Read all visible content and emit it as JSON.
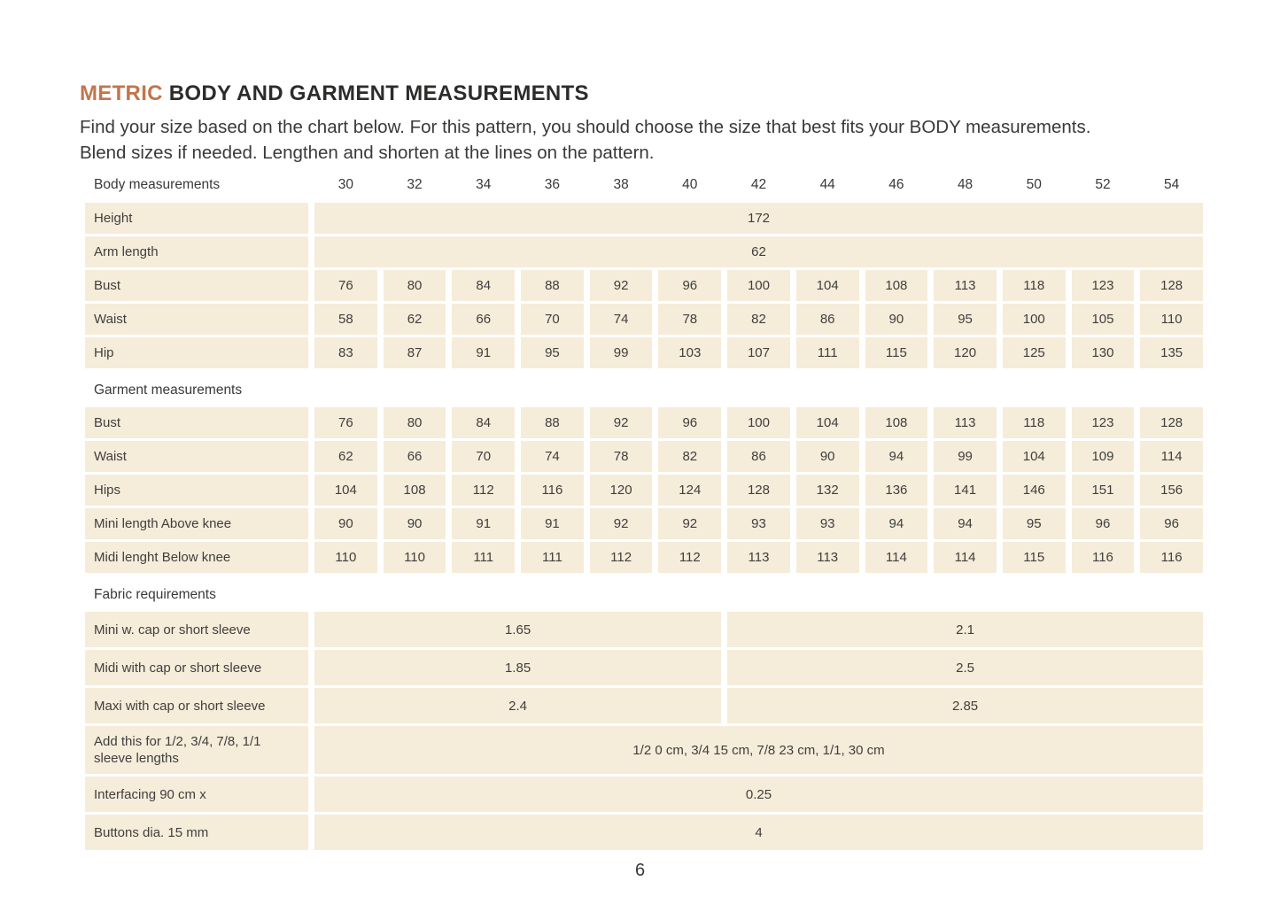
{
  "page": {
    "title_accent": "METRIC",
    "title_rest": " BODY AND GARMENT MEASUREMENTS",
    "intro": "Find your size based on the chart below. For this pattern, you should choose the size that best fits your BODY measurements. Blend sizes if needed. Lengthen and shorten at the lines on the pattern.",
    "page_number": "6",
    "accent_color": "#c1764d",
    "cell_color": "#f5ecda"
  },
  "table": {
    "rows": [
      {
        "type": "header",
        "label": "Body measurements",
        "sizes": [
          "30",
          "32",
          "34",
          "36",
          "38",
          "40",
          "42",
          "44",
          "46",
          "48",
          "50",
          "52",
          "54"
        ]
      },
      {
        "type": "span",
        "label": "Height",
        "value": "172"
      },
      {
        "type": "span",
        "label": "Arm length",
        "value": "62"
      },
      {
        "type": "cells",
        "label": "Bust",
        "values": [
          "76",
          "80",
          "84",
          "88",
          "92",
          "96",
          "100",
          "104",
          "108",
          "113",
          "118",
          "123",
          "128"
        ]
      },
      {
        "type": "cells",
        "label": "Waist",
        "values": [
          "58",
          "62",
          "66",
          "70",
          "74",
          "78",
          "82",
          "86",
          "90",
          "95",
          "100",
          "105",
          "110"
        ]
      },
      {
        "type": "cells",
        "label": "Hip",
        "values": [
          "83",
          "87",
          "91",
          "95",
          "99",
          "103",
          "107",
          "111",
          "115",
          "120",
          "125",
          "130",
          "135"
        ]
      },
      {
        "type": "section",
        "label": "Garment measurements"
      },
      {
        "type": "cells",
        "label": "Bust",
        "values": [
          "76",
          "80",
          "84",
          "88",
          "92",
          "96",
          "100",
          "104",
          "108",
          "113",
          "118",
          "123",
          "128"
        ]
      },
      {
        "type": "cells",
        "label": "Waist",
        "values": [
          "62",
          "66",
          "70",
          "74",
          "78",
          "82",
          "86",
          "90",
          "94",
          "99",
          "104",
          "109",
          "114"
        ]
      },
      {
        "type": "cells",
        "label": "Hips",
        "values": [
          "104",
          "108",
          "112",
          "116",
          "120",
          "124",
          "128",
          "132",
          "136",
          "141",
          "146",
          "151",
          "156"
        ]
      },
      {
        "type": "cells",
        "label": "Mini length Above knee",
        "values": [
          "90",
          "90",
          "91",
          "91",
          "92",
          "92",
          "93",
          "93",
          "94",
          "94",
          "95",
          "96",
          "96"
        ]
      },
      {
        "type": "cells",
        "label": "Midi lenght Below knee",
        "values": [
          "110",
          "110",
          "111",
          "111",
          "112",
          "112",
          "113",
          "113",
          "114",
          "114",
          "115",
          "116",
          "116"
        ]
      },
      {
        "type": "section",
        "label": "Fabric requirements"
      },
      {
        "type": "split",
        "variant": "lg",
        "label": "Mini w. cap or short sleeve",
        "left": "1.65",
        "right": "2.1"
      },
      {
        "type": "split",
        "variant": "lg",
        "label": "Midi with cap or short sleeve",
        "left": "1.85",
        "right": "2.5"
      },
      {
        "type": "split",
        "variant": "lg",
        "label": "Maxi with cap or short sleeve",
        "left": "2.4",
        "right": "2.85"
      },
      {
        "type": "span",
        "variant": "xl",
        "label": "Add this for 1/2, 3/4, 7/8, 1/1 sleeve lengths",
        "value": "1/2 0 cm, 3/4 15 cm, 7/8 23 cm, 1/1, 30 cm"
      },
      {
        "type": "span",
        "variant": "lg",
        "label": "Interfacing 90 cm x",
        "value": "0.25"
      },
      {
        "type": "span",
        "variant": "lg",
        "label": "Buttons dia. 15 mm",
        "value": "4"
      }
    ]
  }
}
